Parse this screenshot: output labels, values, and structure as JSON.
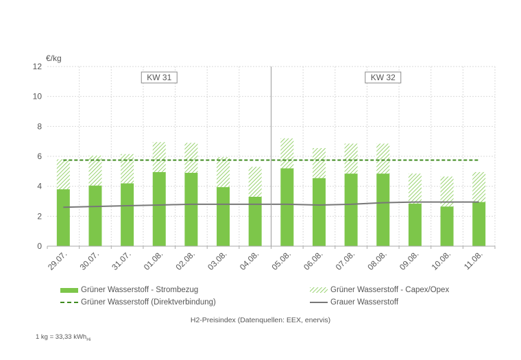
{
  "chart_data": {
    "type": "bar",
    "ylabel": "€/kg",
    "ylim": [
      0,
      12
    ],
    "yticks": [
      "0",
      "2",
      "4",
      "6",
      "8",
      "10",
      "12"
    ],
    "grid": true,
    "categories": [
      "29.07.",
      "30.07.",
      "31.07.",
      "01.08.",
      "02.08.",
      "03.08.",
      "04.08.",
      "05.08.",
      "06.08.",
      "07.08.",
      "08.08.",
      "09.08.",
      "10.08.",
      "11.08."
    ],
    "week_labels": [
      {
        "label": "KW 31",
        "start": 0,
        "end": 6
      },
      {
        "label": "KW 32",
        "start": 7,
        "end": 13
      }
    ],
    "series": [
      {
        "name": "Grüner Wasserstoff - Strombezug",
        "kind": "stacked-bar",
        "values": [
          3.8,
          4.05,
          4.2,
          4.95,
          4.9,
          3.95,
          3.3,
          5.2,
          4.55,
          4.85,
          4.85,
          2.85,
          2.65,
          2.95
        ]
      },
      {
        "name": "Grüner Wasserstoff - Capex/Opex",
        "kind": "stacked-bar-hatched",
        "values": [
          2.0,
          2.0,
          1.95,
          2.0,
          2.0,
          2.0,
          2.0,
          2.0,
          2.0,
          2.0,
          2.0,
          2.0,
          2.0,
          2.0
        ]
      },
      {
        "name": "Grüner Wasserstoff (Direktverbindung)",
        "kind": "dashed-line",
        "values": [
          5.75,
          5.75,
          5.75,
          5.75,
          5.75,
          5.75,
          5.75,
          5.75,
          5.75,
          5.75,
          5.75,
          5.75,
          5.75,
          5.75
        ]
      },
      {
        "name": "Grauer Wasserstoff",
        "kind": "line",
        "values": [
          2.6,
          2.65,
          2.7,
          2.75,
          2.8,
          2.8,
          2.8,
          2.8,
          2.75,
          2.8,
          2.9,
          2.95,
          2.95,
          2.95
        ]
      }
    ],
    "colors": {
      "bar_solid": "#7dc64a",
      "hatch": "#7dc64a",
      "dashed_line": "#3e8a1e",
      "grey_line": "#777777",
      "grid": "#d9d9d9",
      "axis": "#aaaaaa"
    }
  },
  "legend": {
    "items": [
      {
        "label": "Grüner Wasserstoff - Strombezug",
        "swatch": "solid"
      },
      {
        "label": "Grüner Wasserstoff - Capex/Opex",
        "swatch": "hatch"
      },
      {
        "label": "Grüner Wasserstoff (Direktverbindung)",
        "swatch": "dash"
      },
      {
        "label": "Grauer Wasserstoff",
        "swatch": "line"
      }
    ]
  },
  "caption": "H2-Preisindex (Datenquellen: EEX, enervis)",
  "footnote": {
    "text": "1 kg = 33,33 kWh",
    "subscript": "Hi"
  }
}
